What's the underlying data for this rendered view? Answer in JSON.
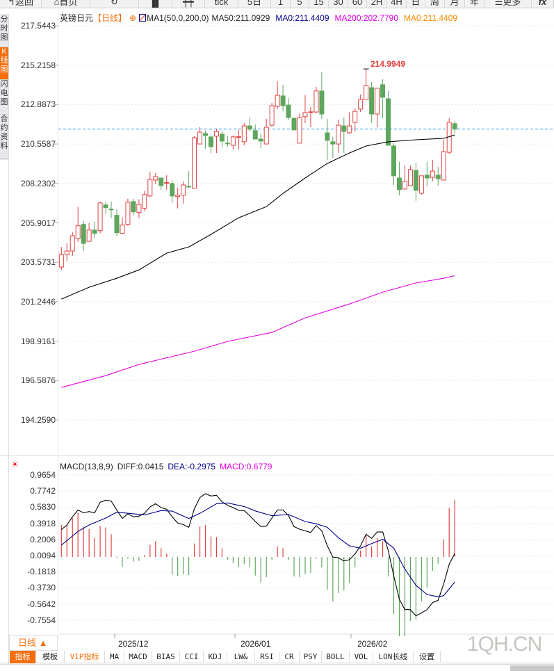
{
  "toolbar": {
    "items": [
      {
        "label": "返回",
        "icon": "back-arrow-icon"
      },
      {
        "label": "首页",
        "icon": "home-icon"
      },
      {
        "label": "",
        "icon": "refresh-icon"
      },
      {
        "label": "",
        "icon": "bar-chart-icon"
      },
      {
        "label": "",
        "icon": "candlestick-icon"
      },
      {
        "label": "tick"
      },
      {
        "label": "5日"
      },
      {
        "label": "1"
      },
      {
        "label": "5"
      },
      {
        "label": "15"
      },
      {
        "label": "30"
      },
      {
        "label": "60"
      },
      {
        "label": "2H"
      },
      {
        "label": "4H"
      },
      {
        "label": "日"
      },
      {
        "label": "周"
      },
      {
        "label": "月"
      },
      {
        "label": "年"
      },
      {
        "label": "更多",
        "icon": "menu-icon"
      },
      {
        "label": "fx"
      }
    ]
  },
  "left_tabs": [
    {
      "label": "分时图"
    },
    {
      "label": "K线图",
      "active": true
    },
    {
      "label": "闪电图"
    },
    {
      "label": "合约资料"
    }
  ],
  "legend": {
    "symbol": "英镑日元",
    "period": "【日线】",
    "ma_params": "MA1(50,0,200,0)",
    "ma50": "MA50:211.0929",
    "ma0_a": "MA0:211.4409",
    "ma200": "MA200:202.7790",
    "ma0_b": "MA0:211.4409"
  },
  "price_axis": [
    "217.5443",
    "215.2158",
    "212.8873",
    "210.5587",
    "208.2302",
    "205.9017",
    "203.5731",
    "201.2446",
    "198.9161",
    "196.5876",
    "194.2590"
  ],
  "macd_axis": [
    "0.9654",
    "0.7742",
    "0.5830",
    "0.3918",
    "0.2006",
    "0.0094",
    "-0.1818",
    "-0.3730",
    "-0.5642",
    "-0.7554"
  ],
  "macd_legend": {
    "params": "MACD(13,8,9)",
    "diff": "DIFF:0.0415",
    "dea": "DEA:-0.2975",
    "macd": "MACD:0.6779"
  },
  "dates": [
    "2025/12",
    "2026/01",
    "2026/02"
  ],
  "period_selector": "日线 ▲",
  "bottom_tabs": [
    "指标",
    "模板",
    "VIP指标",
    "MA",
    "MACD",
    "BIAS",
    "CCI",
    "KDJ",
    "LW&",
    "RSI",
    "CR",
    "PSY",
    "BOLL",
    "VOL",
    "LON长线",
    "设置"
  ],
  "watermark": "1QH.CN",
  "colors": {
    "up": "#e04040",
    "down": "#5da65d",
    "ma50": "#000000",
    "ma200": "#e000e0",
    "diff": "#000000",
    "dea": "#00008b",
    "accent": "#f56f0d",
    "last_price_line": "#1e90ff"
  },
  "chart_data": {
    "type": "candlestick",
    "ylim": [
      194.259,
      217.5443
    ],
    "last_price": 211.4409,
    "peak_label": "214.9949",
    "candles_ohlc": [
      [
        203.29,
        204.48,
        203.12,
        204.03
      ],
      [
        204.03,
        204.69,
        203.66,
        204.24
      ],
      [
        204.24,
        205.36,
        203.95,
        205.14
      ],
      [
        204.98,
        206.84,
        204.77,
        205.73
      ],
      [
        205.81,
        206.02,
        204.24,
        204.69
      ],
      [
        204.81,
        205.89,
        204.81,
        205.48
      ],
      [
        205.48,
        205.98,
        204.98,
        205.28
      ],
      [
        205.44,
        207.16,
        205.28,
        207.08
      ],
      [
        206.96,
        207.16,
        206.43,
        206.8
      ],
      [
        206.71,
        207.16,
        206.18,
        206.67
      ],
      [
        206.35,
        206.71,
        205.14,
        205.32
      ],
      [
        205.28,
        206.22,
        205.24,
        205.77
      ],
      [
        205.81,
        207.33,
        205.73,
        207.12
      ],
      [
        207.16,
        207.33,
        206.35,
        206.55
      ],
      [
        206.51,
        207.29,
        206.18,
        207.0
      ],
      [
        206.76,
        207.78,
        206.59,
        207.57
      ],
      [
        207.49,
        208.92,
        207.41,
        208.47
      ],
      [
        208.43,
        208.84,
        208.19,
        208.63
      ],
      [
        208.55,
        208.55,
        207.86,
        208.1
      ],
      [
        208.27,
        208.72,
        207.86,
        208.28
      ],
      [
        208.23,
        208.39,
        207.08,
        207.49
      ],
      [
        207.45,
        207.98,
        206.76,
        207.53
      ],
      [
        207.53,
        208.35,
        207.04,
        208.14
      ],
      [
        208.06,
        208.96,
        207.98,
        208.02
      ],
      [
        207.94,
        211.02,
        207.94,
        210.93
      ],
      [
        210.56,
        211.55,
        210.56,
        211.26
      ],
      [
        211.18,
        211.35,
        210.28,
        211.06
      ],
      [
        210.98,
        211.06,
        210.03,
        210.4
      ],
      [
        211.02,
        211.47,
        210.03,
        211.3
      ],
      [
        211.14,
        211.3,
        210.4,
        210.73
      ],
      [
        210.61,
        211.06,
        210.4,
        210.6
      ],
      [
        210.48,
        211.06,
        210.24,
        210.98
      ],
      [
        210.98,
        211.39,
        210.24,
        210.99
      ],
      [
        210.69,
        211.8,
        210.48,
        211.63
      ],
      [
        211.63,
        212.12,
        211.3,
        211.43
      ],
      [
        211.35,
        211.71,
        210.85,
        210.85
      ],
      [
        210.85,
        211.14,
        210.32,
        210.73
      ],
      [
        210.56,
        212.04,
        210.56,
        211.55
      ],
      [
        211.67,
        212.99,
        211.59,
        212.82
      ],
      [
        212.78,
        214.26,
        212.62,
        213.44
      ],
      [
        213.4,
        214.06,
        212.49,
        212.82
      ],
      [
        212.86,
        213.27,
        211.96,
        212.12
      ],
      [
        212.08,
        212.08,
        211.39,
        211.39
      ],
      [
        210.61,
        212.37,
        210.61,
        212.12
      ],
      [
        212.17,
        213.44,
        211.8,
        212.41
      ],
      [
        212.45,
        212.74,
        211.55,
        212.46
      ],
      [
        212.45,
        213.93,
        212.37,
        213.69
      ],
      [
        213.69,
        214.79,
        212.04,
        212.33
      ],
      [
        211.22,
        212.04,
        209.63,
        210.77
      ],
      [
        210.69,
        210.98,
        209.75,
        210.56
      ],
      [
        210.56,
        212.0,
        210.03,
        211.67
      ],
      [
        211.63,
        212.12,
        210.03,
        211.3
      ],
      [
        211.22,
        212.45,
        211.14,
        211.63
      ],
      [
        211.84,
        212.66,
        211.3,
        212.49
      ],
      [
        212.62,
        213.48,
        212.45,
        213.19
      ],
      [
        213.19,
        214.9949,
        213.19,
        214.01
      ],
      [
        213.89,
        214.22,
        211.8,
        212.33
      ],
      [
        212.33,
        213.85,
        211.55,
        213.85
      ],
      [
        214.06,
        214.38,
        212.08,
        213.32
      ],
      [
        213.23,
        213.69,
        210.48,
        210.48
      ],
      [
        210.44,
        210.61,
        208.14,
        208.68
      ],
      [
        208.55,
        209.5,
        207.53,
        207.86
      ],
      [
        207.9,
        209.29,
        207.86,
        208.35
      ],
      [
        208.1,
        209.29,
        208.1,
        209.05
      ],
      [
        209.0,
        209.46,
        207.2,
        207.82
      ],
      [
        207.65,
        208.68,
        207.57,
        208.68
      ],
      [
        208.72,
        209.5,
        208.06,
        208.55
      ],
      [
        208.59,
        209.63,
        208.35,
        208.96
      ],
      [
        208.72,
        209.21,
        208.1,
        208.51
      ],
      [
        208.43,
        210.81,
        208.43,
        210.11
      ],
      [
        210.07,
        212.08,
        209.95,
        211.84
      ],
      [
        211.76,
        211.92,
        211.18,
        211.44
      ]
    ],
    "ma50_samples": [
      [
        1,
        201.4
      ],
      [
        6,
        202.1
      ],
      [
        11,
        202.63
      ],
      [
        15,
        203.12
      ],
      [
        20,
        204.11
      ],
      [
        24,
        204.48
      ],
      [
        28,
        205.22
      ],
      [
        33,
        206.2
      ],
      [
        38,
        206.86
      ],
      [
        41,
        207.64
      ],
      [
        45,
        208.55
      ],
      [
        49,
        209.41
      ],
      [
        53,
        210.03
      ],
      [
        56,
        210.44
      ],
      [
        60,
        210.69
      ],
      [
        65,
        210.81
      ],
      [
        70,
        210.89
      ],
      [
        72,
        211.09
      ]
    ],
    "ma200_samples": [
      [
        1,
        196.18
      ],
      [
        9,
        196.88
      ],
      [
        15,
        197.54
      ],
      [
        25,
        198.32
      ],
      [
        31,
        198.9
      ],
      [
        39,
        199.43
      ],
      [
        45,
        200.29
      ],
      [
        53,
        201.11
      ],
      [
        59,
        201.81
      ],
      [
        65,
        202.35
      ],
      [
        70,
        202.63
      ],
      [
        72,
        202.78
      ]
    ],
    "macd": {
      "ylim": [
        -0.7554,
        0.9654
      ],
      "hist": [
        0.379,
        0.384,
        0.461,
        0.524,
        0.36,
        0.329,
        0.228,
        0.368,
        0.351,
        0.269,
        -0.011,
        -0.115,
        -0.019,
        -0.055,
        -0.047,
        0.022,
        0.145,
        0.187,
        0.104,
        0.041,
        -0.211,
        -0.225,
        -0.206,
        -0.214,
        0.159,
        0.36,
        0.379,
        0.242,
        0.236,
        0.104,
        -0.033,
        -0.074,
        -0.124,
        -0.082,
        -0.115,
        -0.22,
        -0.302,
        -0.239,
        -0.038,
        0.126,
        0.104,
        -0.038,
        -0.231,
        -0.239,
        -0.203,
        -0.189,
        -0.019,
        -0.124,
        -0.39,
        -0.527,
        -0.428,
        -0.395,
        -0.307,
        -0.124,
        0.077,
        0.275,
        0.126,
        0.228,
        0.187,
        -0.231,
        -0.675,
        -0.939,
        -0.939,
        -0.758,
        -0.741,
        -0.527,
        -0.362,
        -0.165,
        -0.082,
        0.209,
        0.579,
        0.678
      ],
      "diff": [
        0.324,
        0.379,
        0.475,
        0.557,
        0.522,
        0.538,
        0.522,
        0.648,
        0.673,
        0.662,
        0.557,
        0.456,
        0.511,
        0.475,
        0.483,
        0.516,
        0.593,
        0.631,
        0.585,
        0.565,
        0.475,
        0.401,
        0.384,
        0.351,
        0.571,
        0.703,
        0.749,
        0.722,
        0.73,
        0.653,
        0.612,
        0.585,
        0.552,
        0.549,
        0.489,
        0.42,
        0.361,
        0.365,
        0.461,
        0.557,
        0.557,
        0.489,
        0.36,
        0.329,
        0.31,
        0.291,
        0.371,
        0.31,
        0.132,
        0.0,
        -0.011,
        -0.047,
        -0.033,
        0.036,
        0.132,
        0.269,
        0.22,
        0.296,
        0.296,
        0.077,
        -0.225,
        -0.5,
        -0.623,
        -0.623,
        -0.697,
        -0.664,
        -0.623,
        -0.541,
        -0.513,
        -0.321,
        -0.088,
        0.0415
      ],
      "dea_samples": [
        [
          1,
          0.14
        ],
        [
          4,
          0.302
        ],
        [
          6,
          0.379
        ],
        [
          9,
          0.461
        ],
        [
          11,
          0.53
        ],
        [
          14,
          0.511
        ],
        [
          16,
          0.497
        ],
        [
          19,
          0.549
        ],
        [
          21,
          0.543
        ],
        [
          24,
          0.456
        ],
        [
          26,
          0.516
        ],
        [
          29,
          0.631
        ],
        [
          31,
          0.64
        ],
        [
          34,
          0.598
        ],
        [
          36,
          0.545
        ],
        [
          37,
          0.525
        ],
        [
          39,
          0.489
        ],
        [
          42,
          0.502
        ],
        [
          45,
          0.42
        ],
        [
          47,
          0.393
        ],
        [
          49,
          0.351
        ],
        [
          51,
          0.228
        ],
        [
          53,
          0.132
        ],
        [
          55,
          0.104
        ],
        [
          57,
          0.159
        ],
        [
          59,
          0.209
        ],
        [
          61,
          0.104
        ],
        [
          63,
          -0.143
        ],
        [
          65,
          -0.335
        ],
        [
          67,
          -0.445
        ],
        [
          69,
          -0.472
        ],
        [
          70,
          -0.459
        ],
        [
          72,
          -0.2975
        ]
      ]
    }
  }
}
